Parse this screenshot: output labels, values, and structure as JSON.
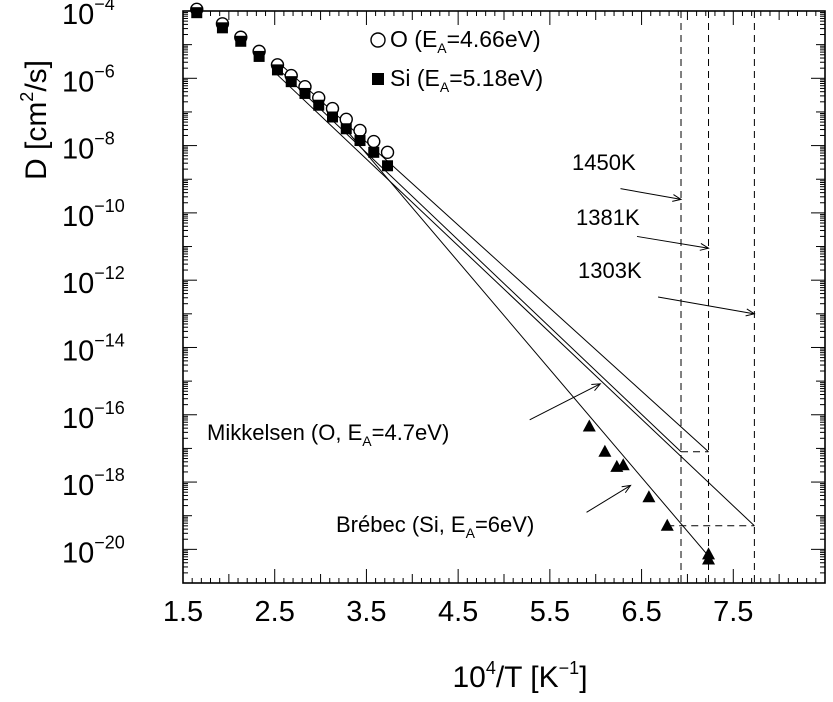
{
  "chart_data": {
    "type": "scatter",
    "xlabel_base": "10",
    "xlabel_sup": "4",
    "xlabel_after": "/T [K",
    "xlabel_sup2": "−1",
    "xlabel_end": "]",
    "ylabel_pre": "D [cm",
    "ylabel_sup": "2",
    "ylabel_post": "/s]",
    "xlim": [
      1.5,
      8.5
    ],
    "ylim_log10": [
      -21,
      -4
    ],
    "y_scale": "log",
    "x_ticks": [
      1.5,
      2.5,
      3.5,
      4.5,
      5.5,
      6.5,
      7.5
    ],
    "x_tick_labels": [
      "1.5",
      "2.5",
      "3.5",
      "4.5",
      "5.5",
      "6.5",
      "7.5"
    ],
    "y_ticks_log10": [
      -4,
      -6,
      -8,
      -10,
      -12,
      -14,
      -16,
      -18,
      -20
    ],
    "y_tick_base": "10",
    "y_tick_exponents": [
      "−4",
      "−6",
      "−8",
      "−10",
      "−12",
      "−14",
      "−16",
      "−18",
      "−20"
    ],
    "legend_placement": "top-center",
    "series": [
      {
        "marker": "open-circle",
        "legend_prefix": "O (E",
        "legend_sub": "A",
        "legend_suffix": "=4.66eV)",
        "points": [
          [
            1.65,
            -3.95
          ],
          [
            1.93,
            -4.38
          ],
          [
            2.13,
            -4.78
          ],
          [
            2.33,
            -5.2
          ],
          [
            2.53,
            -5.6
          ],
          [
            2.68,
            -5.92
          ],
          [
            2.83,
            -6.25
          ],
          [
            2.98,
            -6.58
          ],
          [
            3.13,
            -6.9
          ],
          [
            3.28,
            -7.22
          ],
          [
            3.43,
            -7.55
          ],
          [
            3.58,
            -7.88
          ],
          [
            3.73,
            -8.2
          ]
        ]
      },
      {
        "marker": "filled-square",
        "legend_prefix": "Si (E",
        "legend_sub": "A",
        "legend_suffix": "=5.18eV)",
        "points": [
          [
            1.65,
            -4.05
          ],
          [
            1.93,
            -4.5
          ],
          [
            2.13,
            -4.9
          ],
          [
            2.33,
            -5.35
          ],
          [
            2.53,
            -5.75
          ],
          [
            2.68,
            -6.1
          ],
          [
            2.83,
            -6.45
          ],
          [
            2.98,
            -6.8
          ],
          [
            3.13,
            -7.15
          ],
          [
            3.28,
            -7.5
          ],
          [
            3.43,
            -7.85
          ],
          [
            3.58,
            -8.2
          ],
          [
            3.73,
            -8.6
          ]
        ]
      },
      {
        "marker": "filled-triangle",
        "points": [
          [
            5.93,
            -16.35
          ],
          [
            6.1,
            -17.1
          ],
          [
            6.23,
            -17.55
          ],
          [
            6.3,
            -17.5
          ],
          [
            6.58,
            -18.45
          ],
          [
            6.78,
            -19.3
          ],
          [
            7.23,
            -20.15
          ],
          [
            7.23,
            -20.3
          ]
        ]
      }
    ],
    "lines": [
      {
        "x": [
          2.53,
          7.23
        ],
        "y": [
          -5.5,
          -17.1
        ]
      },
      {
        "x": [
          2.53,
          6.93
        ],
        "y": [
          -5.7,
          -17.1
        ]
      },
      {
        "x": [
          2.53,
          7.73
        ],
        "y": [
          -5.9,
          -19.3
        ]
      },
      {
        "x": [
          3.3,
          7.23
        ],
        "y": [
          -7.6,
          -20.2
        ]
      }
    ],
    "dashed_lines": [
      {
        "x": [
          6.93,
          6.93
        ],
        "y": [
          -4,
          -21
        ]
      },
      {
        "x": [
          7.23,
          7.23
        ],
        "y": [
          -4,
          -21
        ]
      },
      {
        "x": [
          7.73,
          7.73
        ],
        "y": [
          -4,
          -21
        ]
      },
      {
        "x": [
          6.93,
          7.23
        ],
        "y": [
          -17.1,
          -17.1
        ]
      },
      {
        "x": [
          6.78,
          7.73
        ],
        "y": [
          -19.3,
          -19.3
        ]
      }
    ],
    "annotations": [
      {
        "text": "1450K",
        "arrow_from": [
          6.27,
          -9.28
        ],
        "arrow_to": [
          6.93,
          -9.6
        ]
      },
      {
        "text": "1381K",
        "arrow_from": [
          6.45,
          -10.7
        ],
        "arrow_to": [
          7.23,
          -11.05
        ]
      },
      {
        "text": "1303K",
        "arrow_from": [
          6.68,
          -12.5
        ],
        "arrow_to": [
          7.73,
          -13.0
        ]
      },
      {
        "text_prefix": "Mikkelsen (O, E",
        "text_sub": "A",
        "text_suffix": "=4.7eV)",
        "arrow_from": [
          5.28,
          -16.15
        ],
        "arrow_to": [
          6.05,
          -15.08
        ]
      },
      {
        "text_prefix": "Brébec (Si, E",
        "text_sub": "A",
        "text_suffix": "=6eV)",
        "arrow_from": [
          5.9,
          -18.9
        ],
        "arrow_to": [
          6.38,
          -18.1
        ]
      }
    ]
  }
}
